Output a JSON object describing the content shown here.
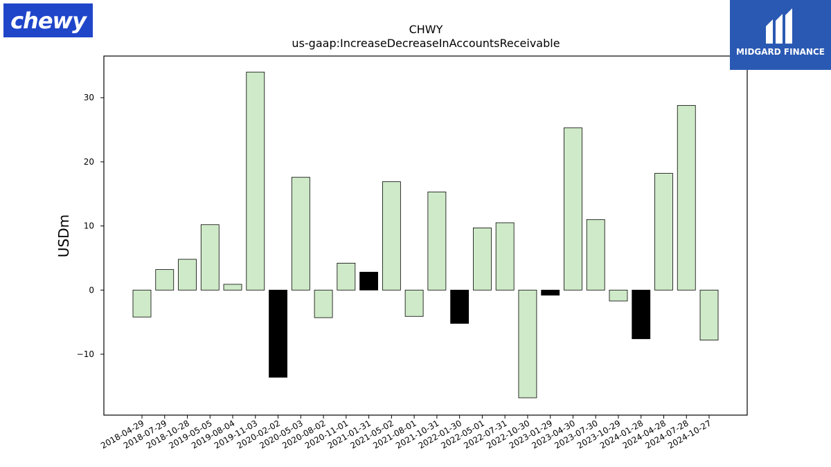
{
  "logos": {
    "left": {
      "text": "chewy",
      "bg": "#1f45c9"
    },
    "right": {
      "text": "MIDGARD FINANCE",
      "bg": "#2a59b3"
    }
  },
  "chart_data": {
    "type": "bar",
    "title": "CHWY",
    "subtitle": "us-gaap:IncreaseDecreaseInAccountsReceivable",
    "xlabel": "",
    "ylabel": "USDm",
    "ylim": [
      -19.5,
      36.5
    ],
    "yticks": [
      -10,
      0,
      10,
      20,
      30
    ],
    "grid": false,
    "colors": {
      "positive": "#cfeac8",
      "negative": "#000000",
      "edge": "#000000"
    },
    "categories": [
      "2018-04-29",
      "2018-07-29",
      "2018-10-28",
      "2019-05-05",
      "2019-08-04",
      "2019-11-03",
      "2020-02-02",
      "2020-05-03",
      "2020-08-02",
      "2020-11-01",
      "2021-01-31",
      "2021-05-02",
      "2021-08-01",
      "2021-10-31",
      "2022-01-30",
      "2022-05-01",
      "2022-07-31",
      "2022-10-30",
      "2023-01-29",
      "2023-04-30",
      "2023-07-30",
      "2023-10-29",
      "2024-01-28",
      "2024-04-28",
      "2024-07-28",
      "2024-10-27"
    ],
    "values": [
      -4.2,
      3.2,
      4.8,
      10.2,
      0.9,
      34.0,
      -13.6,
      17.6,
      -4.3,
      4.2,
      2.8,
      16.9,
      -4.1,
      15.3,
      -5.2,
      9.7,
      10.5,
      -16.8,
      -0.8,
      25.3,
      11.0,
      -1.7,
      -7.6,
      18.2,
      28.8,
      -7.8
    ],
    "highlight": [
      false,
      false,
      false,
      false,
      false,
      false,
      true,
      false,
      false,
      false,
      true,
      false,
      false,
      false,
      true,
      false,
      false,
      false,
      true,
      false,
      false,
      false,
      true,
      false,
      false,
      false
    ]
  }
}
